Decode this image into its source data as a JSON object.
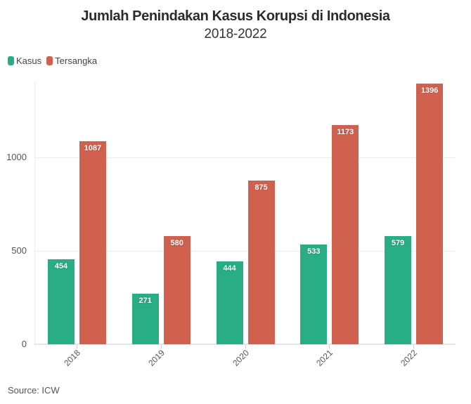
{
  "header": {
    "title": "Jumlah Penindakan Kasus Korupsi di Indonesia",
    "subtitle": "2018-2022"
  },
  "legend": [
    {
      "label": "Kasus",
      "color": "#28ad84"
    },
    {
      "label": "Tersangka",
      "color": "#d0614f"
    }
  ],
  "yaxis": {
    "ticks": [
      "0",
      "500",
      "1000"
    ]
  },
  "footer": {
    "source": "Source: ICW"
  },
  "chart_data": {
    "type": "bar",
    "title": "Jumlah Penindakan Kasus Korupsi di Indonesia",
    "subtitle": "2018-2022",
    "xlabel": "",
    "ylabel": "",
    "categories": [
      "2018",
      "2019",
      "2020",
      "2021",
      "2022"
    ],
    "series": [
      {
        "name": "Kasus",
        "color": "#28ad84",
        "values": [
          454,
          271,
          444,
          533,
          579
        ]
      },
      {
        "name": "Tersangka",
        "color": "#d0614f",
        "values": [
          1087,
          580,
          875,
          1173,
          1396
        ]
      }
    ],
    "yticks": [
      0,
      500,
      1000
    ],
    "ylim": [
      0,
      1406
    ],
    "grid": true,
    "legend_position": "top-left",
    "data_labels": true,
    "source": "Source: ICW"
  }
}
